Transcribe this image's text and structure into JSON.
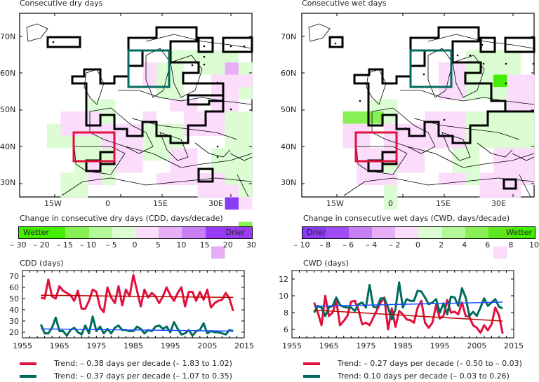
{
  "colors": {
    "red": "#e0103c",
    "teal": "#006b5e",
    "trend_red": "#c00000",
    "trend_blue": "#1f4fff",
    "box_black": "#000000"
  },
  "maps": [
    {
      "title": "Consecutive dry days",
      "lat_labels": [
        "70N",
        "60N",
        "50N",
        "40N",
        "30N"
      ],
      "lon_labels": [
        "15W",
        "0",
        "15E",
        "30E"
      ]
    },
    {
      "title": "Consecutive wet days",
      "lat_labels": [
        "70N",
        "60N",
        "50N",
        "40N",
        "30N"
      ],
      "lon_labels": [
        "15W",
        "0",
        "15E",
        "30E"
      ]
    }
  ],
  "colorbars": [
    {
      "title": "Change in consecutive dry days (CDD, days/decade)",
      "left_label": "Wetter",
      "right_label": "Drier",
      "colors": [
        "#44ee00",
        "#44ee00",
        "#88f055",
        "#b3f99a",
        "#dcfdd4",
        "#fbdcfb",
        "#e6aef7",
        "#c97ff4",
        "#9a3cf7",
        "#9a3cf7"
      ],
      "ticks": [
        "– 30",
        "– 20",
        "– 15",
        "– 10",
        "– 5",
        "0",
        "5",
        "10",
        "15",
        "20",
        "30"
      ]
    },
    {
      "title": "Change in consecutive wet days (CWD, days/decade)",
      "left_label": "Drier",
      "right_label": "Wetter",
      "colors": [
        "#8a3cf5",
        "#a04cf6",
        "#c97ff4",
        "#e6aef7",
        "#fbdcfb",
        "#dcfdd4",
        "#b3f99a",
        "#88f055",
        "#5ee61e",
        "#44ee00"
      ],
      "ticks": [
        "– 10",
        "– 8",
        "– 6",
        "– 4",
        "– 2",
        "0",
        "2",
        "4",
        "6",
        "8",
        "10"
      ]
    }
  ],
  "chart_data": [
    {
      "type": "line",
      "title": "CDD (days)",
      "xlabel": "",
      "ylabel": "CDD (days)",
      "x_ticks": [
        1955,
        1965,
        1975,
        1985,
        1995,
        2005,
        2015
      ],
      "y_ticks": [
        20,
        30,
        40,
        50,
        60,
        70
      ],
      "xlim": [
        1955,
        2015
      ],
      "ylim": [
        15,
        75
      ],
      "x": [
        1960,
        1961,
        1962,
        1963,
        1964,
        1965,
        1966,
        1967,
        1968,
        1969,
        1970,
        1971,
        1972,
        1973,
        1974,
        1975,
        1976,
        1977,
        1978,
        1979,
        1980,
        1981,
        1982,
        1983,
        1984,
        1985,
        1986,
        1987,
        1988,
        1989,
        1990,
        1991,
        1992,
        1993,
        1994,
        1995,
        1996,
        1997,
        1998,
        1999,
        2000,
        2001,
        2002,
        2003,
        2004,
        2005,
        2006,
        2007,
        2008,
        2009,
        2010,
        2011,
        2012
      ],
      "series": [
        {
          "name": "Trend: – 0.38 days per decade (– 1.83 to 1.02)",
          "color": "#e0103c",
          "values": [
            51,
            50,
            67,
            52,
            50,
            61,
            57,
            55,
            53,
            48,
            57,
            41,
            41,
            48,
            58,
            56,
            42,
            38,
            60,
            51,
            46,
            61,
            44,
            58,
            52,
            71,
            57,
            43,
            58,
            51,
            55,
            52,
            46,
            52,
            60,
            53,
            48,
            55,
            60,
            43,
            56,
            56,
            48,
            56,
            49,
            58,
            42,
            46,
            48,
            49,
            55,
            50,
            39
          ],
          "trend": [
            53,
            51
          ]
        },
        {
          "name": "Trend: – 0.37 days per decade (– 1.07 to 0.35)",
          "color": "#006b5e",
          "values": [
            27,
            19,
            19,
            24,
            33,
            21,
            21,
            17,
            22,
            24,
            20,
            18,
            26,
            19,
            34,
            21,
            25,
            19,
            23,
            19,
            24,
            26,
            22,
            22,
            21,
            21,
            25,
            23,
            19,
            22,
            21,
            25,
            26,
            23,
            25,
            20,
            29,
            23,
            18,
            19,
            22,
            17,
            21,
            22,
            28,
            19,
            21,
            20,
            20,
            19,
            18,
            22,
            21
          ],
          "trend": [
            23,
            21
          ]
        }
      ]
    },
    {
      "type": "line",
      "title": "CWD (days)",
      "xlabel": "",
      "ylabel": "CWD (days)",
      "x_ticks": [
        1955,
        1965,
        1975,
        1985,
        1995,
        2005,
        2015
      ],
      "y_ticks": [
        6,
        8,
        10,
        12
      ],
      "xlim": [
        1955,
        2015
      ],
      "ylim": [
        5,
        13
      ],
      "x": [
        1961,
        1962,
        1963,
        1964,
        1965,
        1966,
        1967,
        1968,
        1969,
        1970,
        1971,
        1972,
        1973,
        1974,
        1975,
        1976,
        1977,
        1978,
        1979,
        1980,
        1981,
        1982,
        1983,
        1984,
        1985,
        1986,
        1987,
        1988,
        1989,
        1990,
        1991,
        1992,
        1993,
        1994,
        1995,
        1996,
        1997,
        1998,
        1999,
        2000,
        2001,
        2002,
        2003,
        2004,
        2005,
        2006,
        2007,
        2008,
        2009,
        2010,
        2011,
        2012
      ],
      "series": [
        {
          "name": "Trend: – 0.27 days per decade (– 0.50 to – 0.03)",
          "color": "#e0103c",
          "values": [
            9.2,
            8.0,
            6.5,
            10.0,
            7.6,
            8.0,
            9.4,
            6.5,
            7.0,
            7.6,
            9.3,
            9.4,
            8.3,
            6.6,
            6.8,
            6.5,
            7.4,
            8.3,
            9.2,
            9.8,
            6.0,
            8.5,
            6.3,
            8.2,
            7.8,
            7.2,
            7.1,
            6.8,
            8.6,
            9.4,
            6.8,
            6.2,
            6.8,
            8.9,
            7.3,
            7.6,
            9.5,
            8.0,
            8.1,
            7.8,
            9.2,
            7.6,
            7.5,
            6.5,
            6.2,
            5.6,
            6.5,
            5.9,
            6.6,
            8.6,
            7.7,
            5.5
          ],
          "trend": [
            8.3,
            7.0
          ]
        },
        {
          "name": "Trend: 0.10 days per decade (– 0.03 to 0.26)",
          "color": "#006b5e",
          "values": [
            8.0,
            8.8,
            8.6,
            7.6,
            8.6,
            8.8,
            9.8,
            8.9,
            8.7,
            8.6,
            8.6,
            8.2,
            9.0,
            9.2,
            8.6,
            11.3,
            8.7,
            8.6,
            9.7,
            9.7,
            8.6,
            7.2,
            8.4,
            11.6,
            8.6,
            9.6,
            9.4,
            9.4,
            10.6,
            10.5,
            9.8,
            9.0,
            9.2,
            9.6,
            8.0,
            9.1,
            7.8,
            9.9,
            9.8,
            8.8,
            10.9,
            9.8,
            7.6,
            8.1,
            7.6,
            8.6,
            9.7,
            8.8,
            9.2,
            9.6,
            8.7,
            8.5
          ],
          "trend": [
            8.75,
            9.25
          ]
        }
      ]
    }
  ]
}
